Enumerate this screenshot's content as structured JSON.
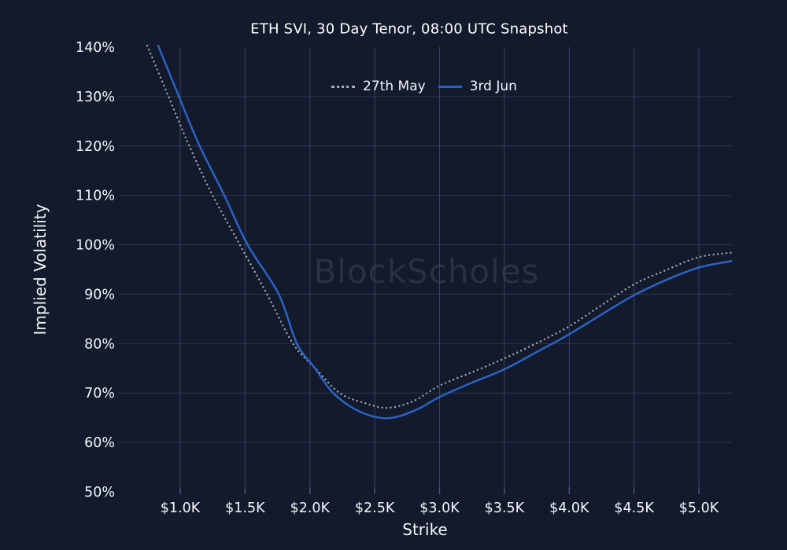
{
  "title": "ETH SVI, 30 Day Tenor, 08:00 UTC Snapshot",
  "watermark": {
    "text": "BlockScholes",
    "color": "#2a3142"
  },
  "legend": {
    "items": [
      {
        "label": "27th May",
        "style": "dotted",
        "color": "#a6abb5"
      },
      {
        "label": "3rd Jun",
        "style": "solid",
        "color": "#2a63c5"
      }
    ]
  },
  "colors": {
    "background": "#121a2b",
    "text": "#f4f6fa",
    "grid_horizontal": "#2b3956",
    "grid_vertical": "#36466b",
    "tick": "#44547a",
    "line_27th_may": "#a6abb5",
    "line_3rd_jun": "#2a63c5"
  },
  "chart_data": {
    "type": "line",
    "title": "ETH SVI, 30 Day Tenor, 08:00 UTC Snapshot",
    "xlabel": "Strike",
    "ylabel": "Implied Volatility",
    "xlim": [
      0.52,
      5.26
    ],
    "ylim": [
      50,
      140
    ],
    "grid": true,
    "legend_position": "top-center",
    "x_tick_values": [
      1.0,
      1.5,
      2.0,
      2.5,
      3.0,
      3.5,
      4.0,
      4.5,
      5.0
    ],
    "x_tick_labels": [
      "$1.0K",
      "$1.5K",
      "$2.0K",
      "$2.5K",
      "$3.0K",
      "$3.5K",
      "$4.0K",
      "$4.5K",
      "$5.0K"
    ],
    "y_tick_values": [
      50,
      60,
      70,
      80,
      90,
      100,
      110,
      120,
      130,
      140
    ],
    "y_tick_labels": [
      "50%",
      "60%",
      "70%",
      "80%",
      "90%",
      "100%",
      "110%",
      "120%",
      "130%",
      "140%"
    ],
    "y_gridline_values": [
      60,
      70,
      80,
      90,
      100,
      110,
      120,
      130
    ],
    "series": [
      {
        "name": "27th May",
        "style": "dotted",
        "color": "#a6abb5",
        "points": [
          [
            0.745,
            140.3
          ],
          [
            0.91,
            130.0
          ],
          [
            1.07,
            120.0
          ],
          [
            1.25,
            110.0
          ],
          [
            1.46,
            100.0
          ],
          [
            1.67,
            90.0
          ],
          [
            1.87,
            80.0
          ],
          [
            2.05,
            74.8
          ],
          [
            2.23,
            70.0
          ],
          [
            2.42,
            68.0
          ],
          [
            2.6,
            67.0
          ],
          [
            2.8,
            68.4
          ],
          [
            3.0,
            71.5
          ],
          [
            3.25,
            74.2
          ],
          [
            3.5,
            77.0
          ],
          [
            3.75,
            80.1
          ],
          [
            4.0,
            83.5
          ],
          [
            4.25,
            87.8
          ],
          [
            4.5,
            92.0
          ],
          [
            4.75,
            94.9
          ],
          [
            5.0,
            97.5
          ],
          [
            5.25,
            98.4
          ]
        ]
      },
      {
        "name": "3rd Jun",
        "style": "solid",
        "color": "#2a63c5",
        "points": [
          [
            0.83,
            140.3
          ],
          [
            0.99,
            130.0
          ],
          [
            1.15,
            120.0
          ],
          [
            1.34,
            110.0
          ],
          [
            1.52,
            100.0
          ],
          [
            1.76,
            90.0
          ],
          [
            1.9,
            80.0
          ],
          [
            2.04,
            75.0
          ],
          [
            2.18,
            70.0
          ],
          [
            2.38,
            66.3
          ],
          [
            2.6,
            64.9
          ],
          [
            2.82,
            66.6
          ],
          [
            3.0,
            69.2
          ],
          [
            3.25,
            72.1
          ],
          [
            3.5,
            74.8
          ],
          [
            3.75,
            78.3
          ],
          [
            4.0,
            81.9
          ],
          [
            4.25,
            85.9
          ],
          [
            4.5,
            89.8
          ],
          [
            4.75,
            92.9
          ],
          [
            5.0,
            95.4
          ],
          [
            5.25,
            96.7
          ]
        ]
      }
    ]
  }
}
